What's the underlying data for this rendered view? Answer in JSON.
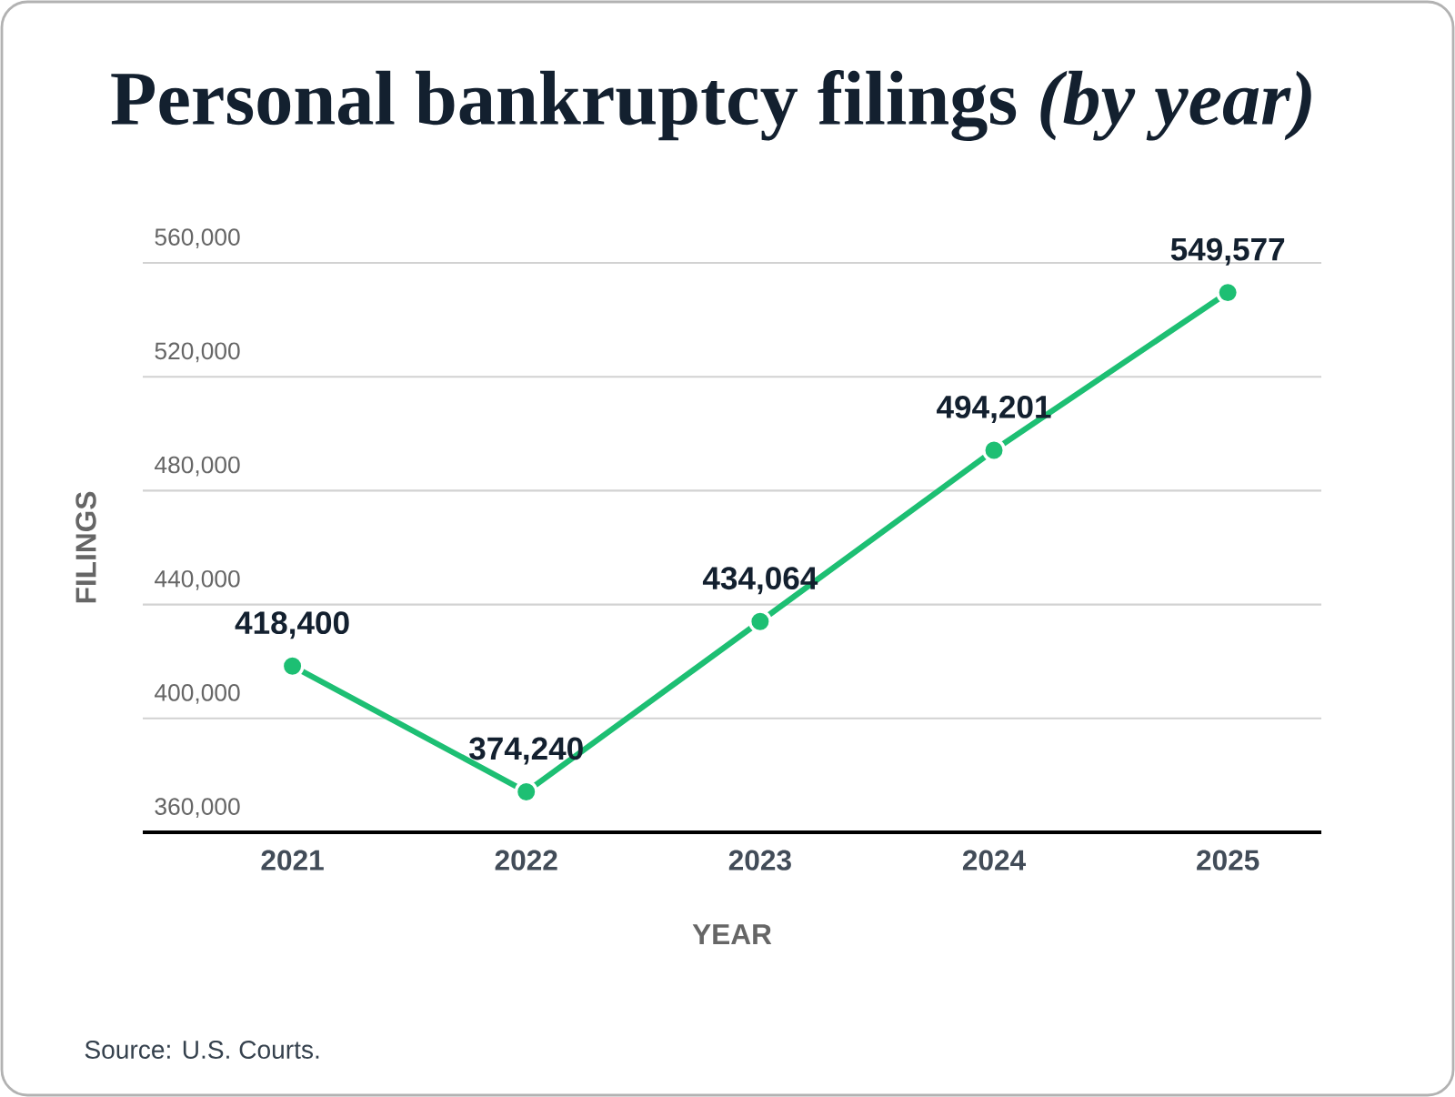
{
  "chart_data": {
    "type": "line",
    "title": "Personal bankruptcy filings *(by year)*",
    "xlabel": "YEAR",
    "ylabel": "FILINGS",
    "categories": [
      "2021",
      "2022",
      "2023",
      "2024",
      "2025"
    ],
    "series": [
      {
        "color": "#1dbf73",
        "values": [
          418400,
          374240,
          434064,
          494201,
          549577
        ],
        "value_labels": [
          "418,400",
          "374,240",
          "434,064",
          "494,201",
          "549,577"
        ]
      }
    ],
    "ylim": [
      360000,
      560000
    ],
    "yticks": [
      {
        "value": 360000,
        "label": "360,000"
      },
      {
        "value": 400000,
        "label": "400,000"
      },
      {
        "value": 440000,
        "label": "440,000"
      },
      {
        "value": 480000,
        "label": "480,000"
      },
      {
        "value": 520000,
        "label": "520,000"
      },
      {
        "value": 560000,
        "label": "560,000"
      }
    ],
    "grid": "y",
    "marker": "circle",
    "line_style": "solid",
    "annotations": [
      "Source: U.S. Courts."
    ]
  }
}
